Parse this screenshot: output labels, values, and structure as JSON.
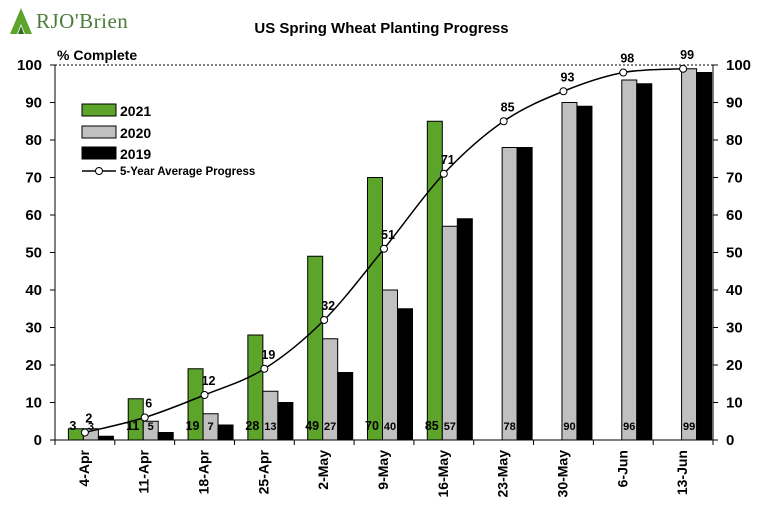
{
  "logo": {
    "text": "RJO'Brien"
  },
  "chart_data": {
    "type": "bar",
    "title": "US Spring Wheat Planting Progress",
    "ylabel": "% Complete",
    "xlabel": "",
    "ylim": [
      0,
      100
    ],
    "yticks": [
      0,
      10,
      20,
      30,
      40,
      50,
      60,
      70,
      80,
      90,
      100
    ],
    "categories": [
      "4-Apr",
      "11-Apr",
      "18-Apr",
      "25-Apr",
      "2-May",
      "9-May",
      "16-May",
      "23-May",
      "30-May",
      "6-Jun",
      "13-Jun"
    ],
    "series": [
      {
        "name": "2021",
        "kind": "bar",
        "color": "#5da42a",
        "values": [
          3,
          11,
          19,
          28,
          49,
          70,
          85,
          null,
          null,
          null,
          null
        ],
        "labels": [
          "3",
          "11",
          "19",
          "28",
          "49",
          "70",
          "85",
          "",
          "",
          "",
          ""
        ]
      },
      {
        "name": "2020",
        "kind": "bar",
        "color": "#c0c0c0",
        "values": [
          3,
          5,
          7,
          13,
          27,
          40,
          57,
          78,
          90,
          96,
          99
        ],
        "labels": [
          "3",
          "5",
          "7",
          "13",
          "27",
          "40",
          "57",
          "78",
          "90",
          "96",
          "99"
        ]
      },
      {
        "name": "2019",
        "kind": "bar",
        "color": "#000000",
        "values": [
          1,
          2,
          4,
          10,
          18,
          35,
          59,
          78,
          89,
          95,
          98
        ],
        "labels": []
      },
      {
        "name": "5-Year Average Progress",
        "kind": "line",
        "color": "#000000",
        "values": [
          2,
          6,
          12,
          19,
          32,
          51,
          71,
          85,
          93,
          98,
          99
        ],
        "labels": [
          "2",
          "6",
          "12",
          "19",
          "32",
          "51",
          "71",
          "85",
          "93",
          "98",
          "99"
        ]
      }
    ],
    "legend_position": "top-left",
    "secondary_axis": true,
    "grid": false,
    "reference_line": 100
  }
}
